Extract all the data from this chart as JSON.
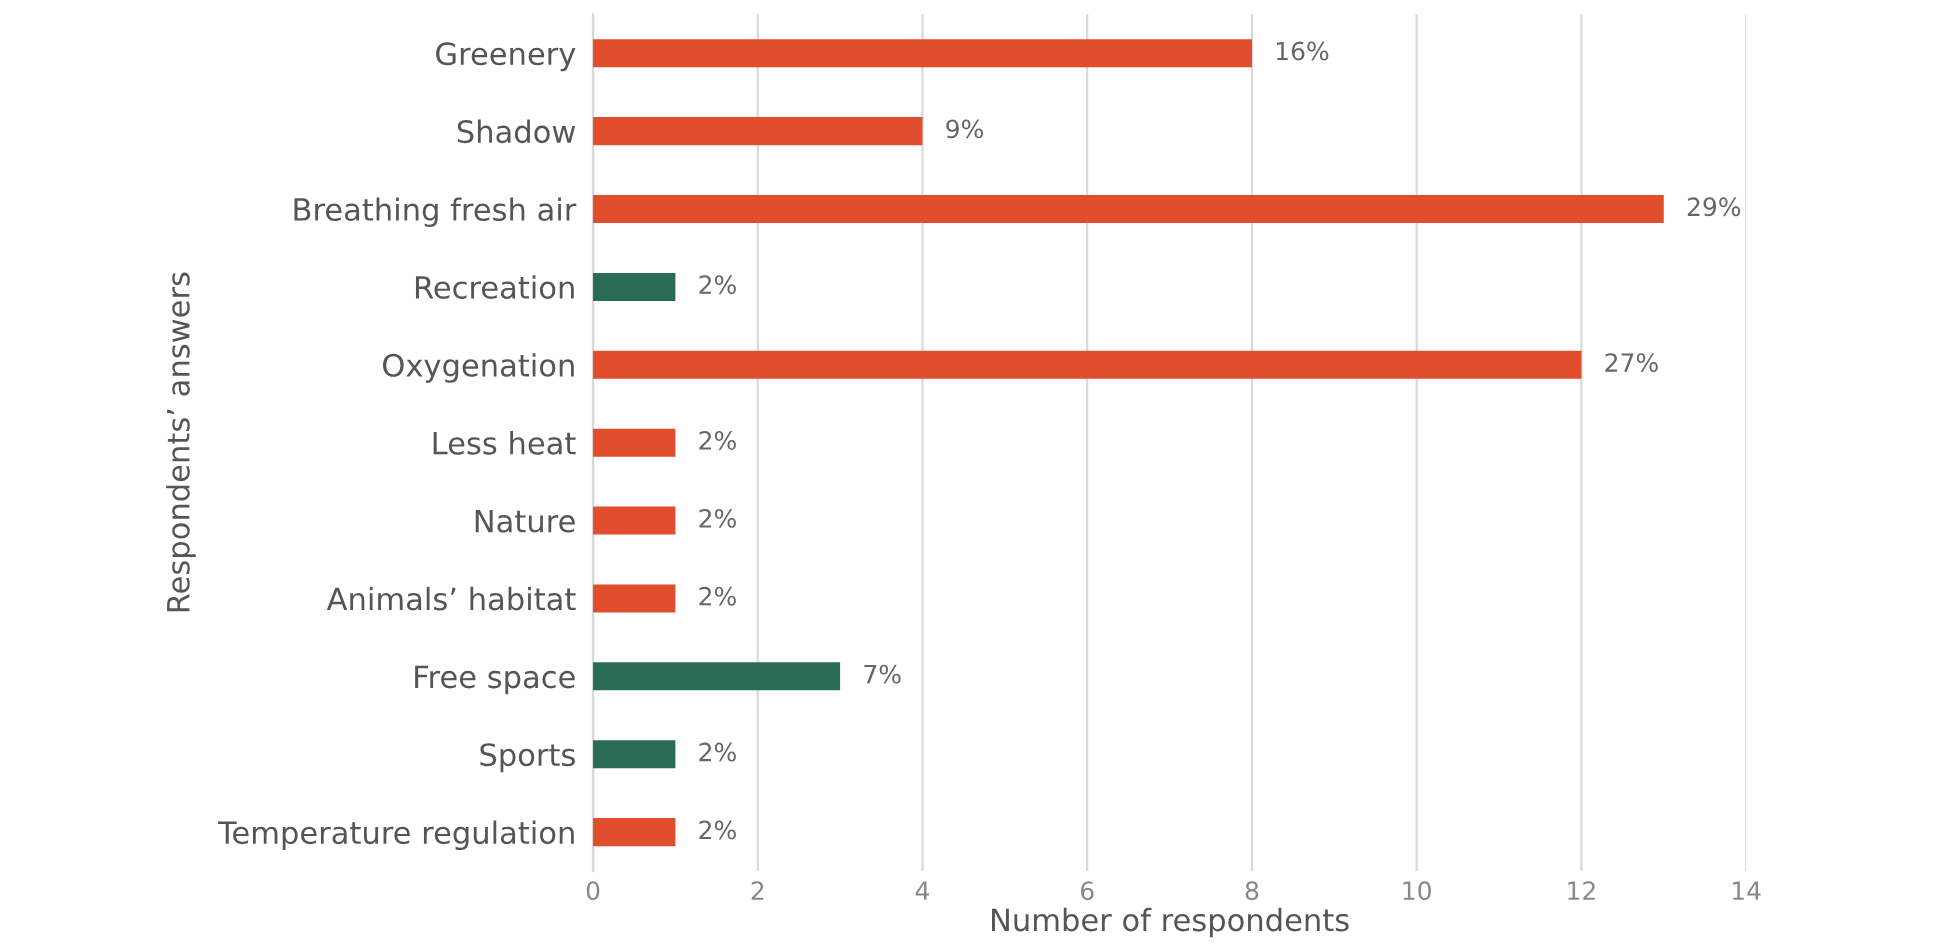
{
  "chart_data": {
    "type": "bar",
    "orientation": "horizontal",
    "xlabel": "Number of respondents",
    "ylabel": "Respondents’ answers",
    "categories": [
      "Greenery",
      "Shadow",
      "Breathing fresh air",
      "Recreation",
      "Oxygenation",
      "Less heat",
      "Nature",
      "Animals’ habitat",
      "Free space",
      "Sports",
      "Temperature regulation"
    ],
    "values": [
      8,
      4,
      13,
      1,
      12,
      1,
      1,
      1,
      3,
      1,
      1
    ],
    "colors": [
      "#e04e2e",
      "#e04e2e",
      "#e04e2e",
      "#2a6b55",
      "#e04e2e",
      "#e04e2e",
      "#e04e2e",
      "#e04e2e",
      "#2a6b55",
      "#2a6b55",
      "#e04e2e"
    ],
    "annotations": [
      {
        "text": "16%",
        "x": 8,
        "y": "Greenery"
      },
      {
        "text": "9%",
        "x": 4,
        "y": "Shadow"
      },
      {
        "text": "29%",
        "x": 13,
        "y": "Breathing fresh air"
      },
      {
        "text": "2%",
        "x": 1,
        "y": "Recreation"
      },
      {
        "text": "27%",
        "x": 12,
        "y": "Oxygenation"
      },
      {
        "text": "2%",
        "x": 1,
        "y": "Less heat"
      },
      {
        "text": "2%",
        "x": 1,
        "y": "Nature"
      },
      {
        "text": "2%",
        "x": 1,
        "y": "Animals’ habitat"
      },
      {
        "text": "7%",
        "x": 3,
        "y": "Free space"
      },
      {
        "text": "2%",
        "x": 1,
        "y": "Sports"
      },
      {
        "text": "2%",
        "x": 1,
        "y": "Temperature regulation"
      }
    ],
    "xlim": [
      0,
      14
    ],
    "xticks": [
      0,
      2,
      4,
      6,
      8,
      10,
      12,
      14
    ],
    "grid": "x",
    "legend": false
  }
}
